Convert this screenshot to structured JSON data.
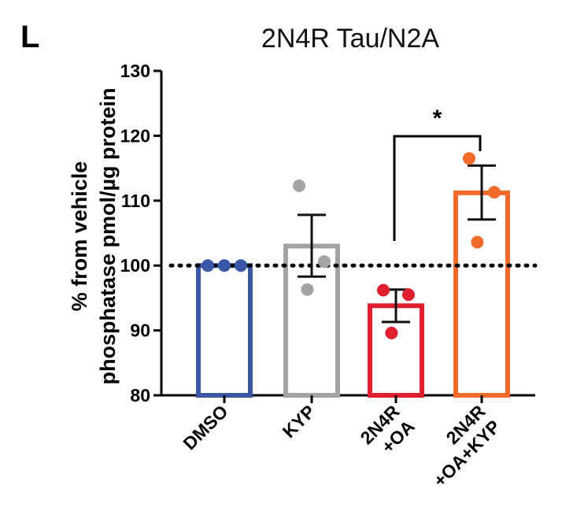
{
  "panel_label": "L",
  "chart_data": {
    "type": "bar",
    "title": "2N4R Tau/N2A",
    "ylabel_lines": [
      "% from vehicle",
      "phosphatase pmol/µg protein"
    ],
    "ylim": [
      80,
      130
    ],
    "yticks": [
      "80",
      "90",
      "100",
      "110",
      "120",
      "130"
    ],
    "reference_line": 100,
    "categories": [
      {
        "lines": [
          "DMSO"
        ]
      },
      {
        "lines": [
          "KYP"
        ]
      },
      {
        "lines": [
          "2N4R",
          "+OA"
        ]
      },
      {
        "lines": [
          "2N4R",
          "+OA+KYP"
        ]
      }
    ],
    "series": [
      {
        "mean": 100,
        "sem_low": 100,
        "sem_high": 100,
        "points": [
          100,
          100,
          100
        ],
        "color": "#3a56a6"
      },
      {
        "mean": 103.0,
        "sem_low": 98.3,
        "sem_high": 107.8,
        "points": [
          112.3,
          100.6,
          96.3
        ],
        "color": "#a3a3a3"
      },
      {
        "mean": 93.8,
        "sem_low": 91.3,
        "sem_high": 96.3,
        "points": [
          96.2,
          95.5,
          89.6
        ],
        "color": "#e0202e"
      },
      {
        "mean": 111.2,
        "sem_low": 107.1,
        "sem_high": 115.4,
        "points": [
          116.5,
          111.3,
          103.6
        ],
        "color": "#f26b2a"
      }
    ],
    "significance": {
      "from": 2,
      "to": 3,
      "label": "*"
    }
  }
}
